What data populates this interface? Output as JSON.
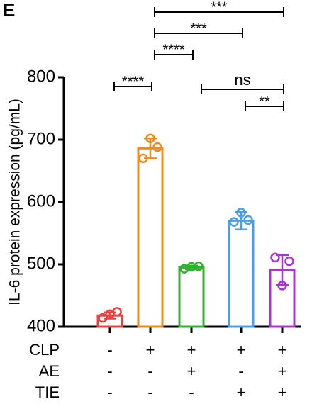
{
  "chart_data": {
    "type": "bar",
    "panel_label": "E",
    "ylabel": "IL-6 protein expression (pg/mL)",
    "values": [
      418,
      686,
      495,
      570,
      491
    ],
    "errors": [
      5,
      16,
      3,
      14,
      24
    ],
    "points": [
      [
        414,
        420,
        424
      ],
      [
        670,
        702,
        688
      ],
      [
        493,
        496,
        497
      ],
      [
        568,
        583,
        571
      ],
      [
        511,
        466,
        505
      ]
    ],
    "colors": [
      "#e8403f",
      "#f28a1c",
      "#2bb52b",
      "#4a9ee8",
      "#b030d8"
    ],
    "ylim": [
      400,
      800
    ],
    "yticks": [
      400,
      500,
      600,
      700,
      800
    ],
    "conditions": [
      {
        "name": "CLP",
        "marks": [
          "-",
          "+",
          "+",
          "+",
          "+"
        ]
      },
      {
        "name": "AE",
        "marks": [
          "-",
          "-",
          "+",
          "-",
          "+"
        ]
      },
      {
        "name": "TIE",
        "marks": [
          "-",
          "-",
          "-",
          "+",
          "+"
        ]
      }
    ],
    "comparisons": [
      {
        "from": 1,
        "to": 4,
        "label": "***"
      },
      {
        "from": 1,
        "to": 3,
        "label": "***"
      },
      {
        "from": 1,
        "to": 2,
        "label": "****"
      },
      {
        "from": 0,
        "to": 1,
        "label": "****"
      },
      {
        "from": 2,
        "to": 4,
        "label": "ns"
      },
      {
        "from": 3,
        "to": 4,
        "label": "**"
      }
    ]
  }
}
